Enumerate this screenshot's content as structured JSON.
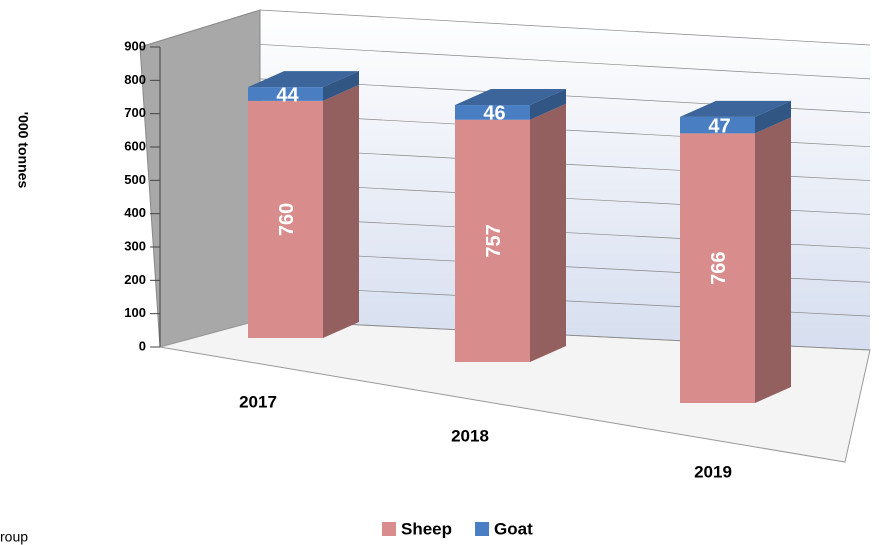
{
  "chart_data": {
    "type": "bar3d_stacked",
    "y_label": "'000 tonnes",
    "categories": [
      "2017",
      "2018",
      "2019"
    ],
    "series": [
      {
        "name": "Sheep",
        "color": "#d98c8c",
        "values": [
          760,
          757,
          766
        ]
      },
      {
        "name": "Goat",
        "color": "#4a7ec2",
        "values": [
          44,
          46,
          47
        ]
      }
    ],
    "ylim": [
      0,
      900
    ],
    "yticks": [
      0,
      100,
      200,
      300,
      400,
      500,
      600,
      700,
      800,
      900
    ],
    "grid": true,
    "legend": "bottom",
    "footnote": "roup"
  }
}
